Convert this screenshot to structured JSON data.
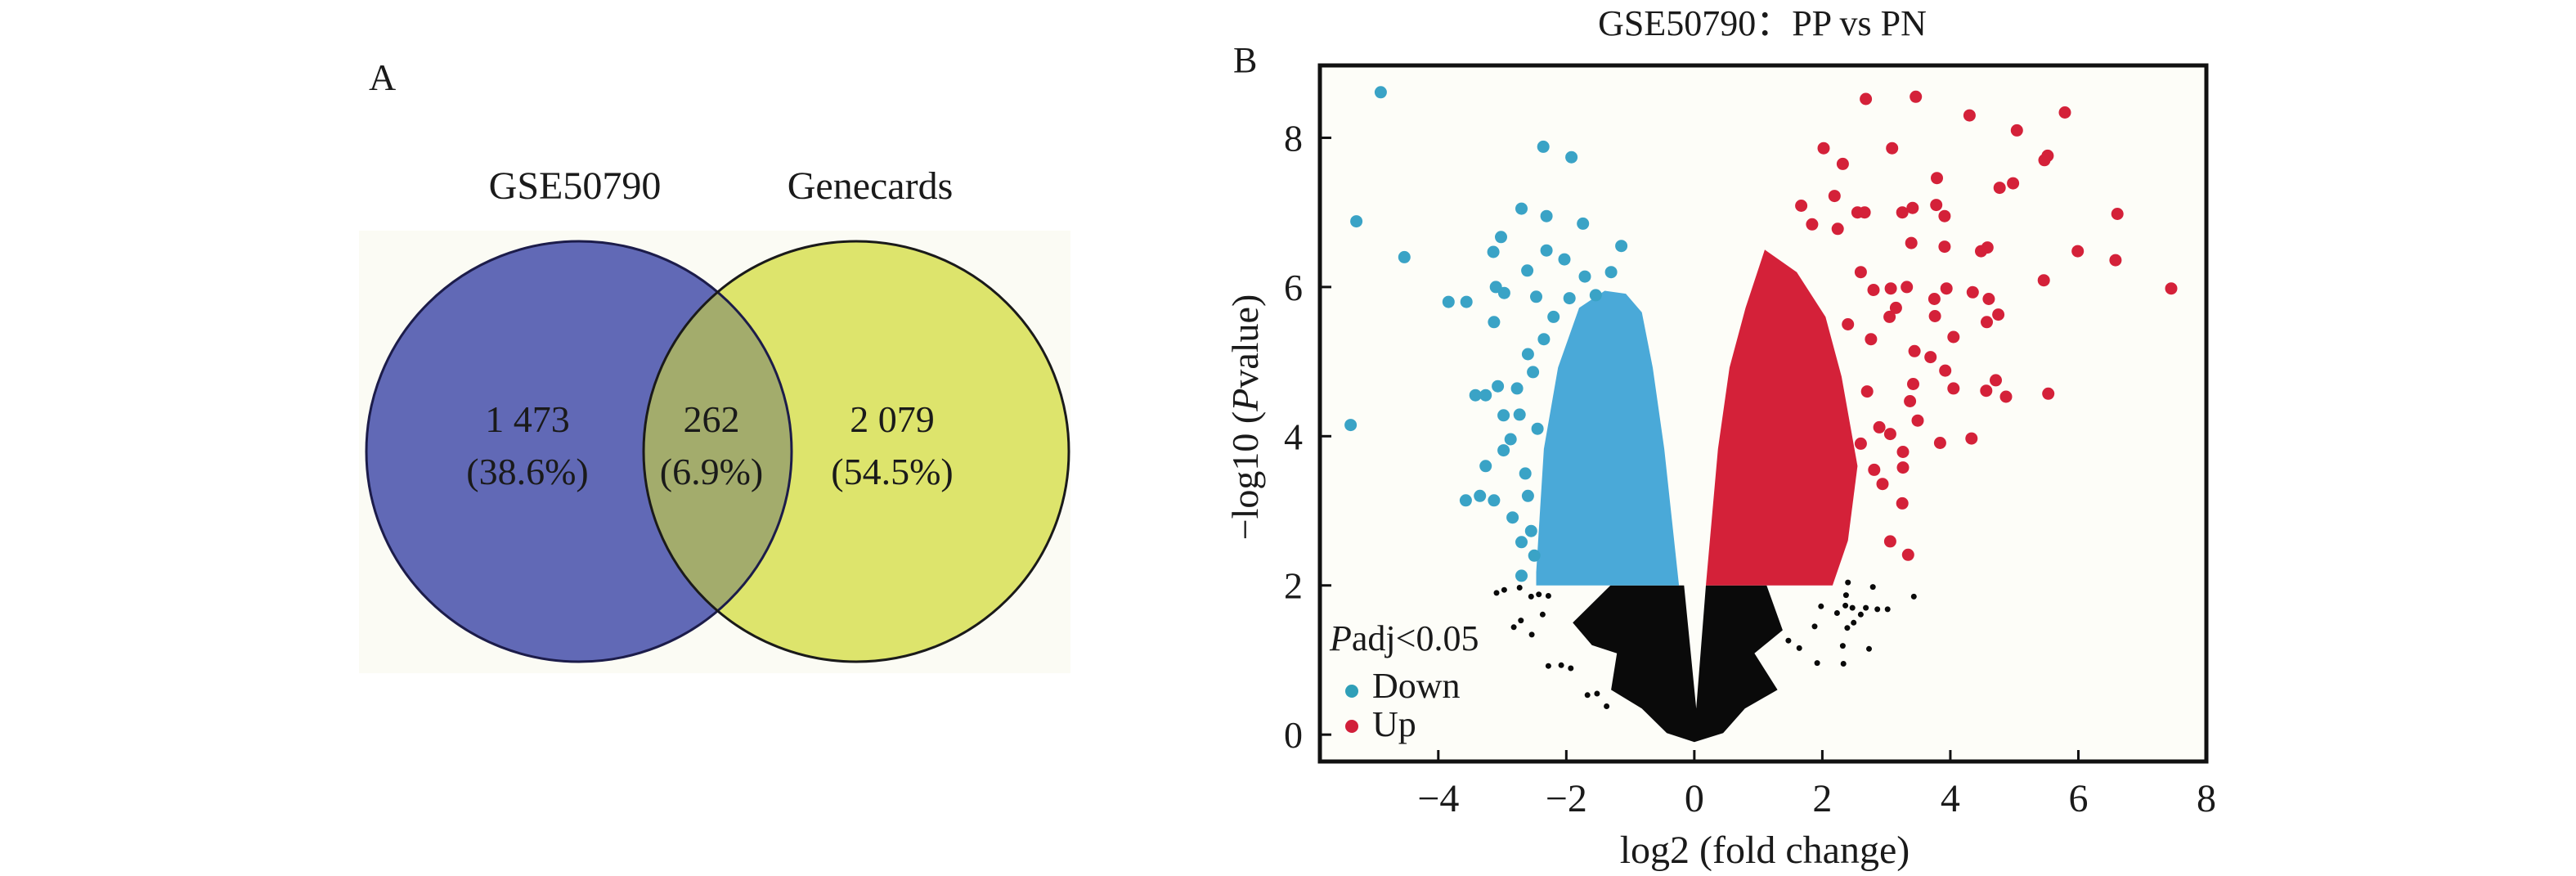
{
  "panels": {
    "a_label": "A",
    "b_label": "B"
  },
  "venn": {
    "sets": [
      {
        "name": "GSE50790",
        "color": "#6169b6"
      },
      {
        "name": "Genecards",
        "color": "#dde46c"
      }
    ],
    "intersection_color": "#a3ac6c",
    "background_color": "#fbfbf4",
    "regions": [
      {
        "id": "only-gse50790",
        "count": "1 473",
        "percent": "(38.6%)"
      },
      {
        "id": "both",
        "count": "262",
        "percent": "(6.9%)"
      },
      {
        "id": "only-genecards",
        "count": "2 079",
        "percent": "(54.5%)"
      }
    ]
  },
  "chart_data": [
    {
      "type": "venn",
      "sets": [
        "GSE50790",
        "Genecards"
      ],
      "values": {
        "GSE50790_only": 1473,
        "intersection": 262,
        "Genecards_only": 2079
      },
      "percentages": {
        "GSE50790_only": 38.6,
        "intersection": 6.9,
        "Genecards_only": 54.5
      }
    },
    {
      "type": "scatter",
      "title": "GSE50790：PP vs PN",
      "xlabel": "log2 (fold change)",
      "ylabel_prefix": "−log10 (",
      "ylabel_italic": "P",
      "ylabel_suffix": "value)",
      "xlim": [
        -5.85,
        8
      ],
      "ylim": [
        -0.36,
        8.97
      ],
      "xticks": [
        -4,
        -2,
        0,
        2,
        4,
        6,
        8
      ],
      "xtick_labels": [
        "−4",
        "−2",
        "0",
        "2",
        "4",
        "6",
        "8"
      ],
      "yticks": [
        0,
        2,
        4,
        6,
        8
      ],
      "ytick_labels": [
        "0",
        "2",
        "4",
        "6",
        "8"
      ],
      "grid": false,
      "legend": {
        "position": "bottom-left",
        "title_italic": "P",
        "title_rest": "adj<0.05",
        "entries": [
          {
            "label": "Down",
            "color": "#2f9fb8"
          },
          {
            "label": "Up",
            "color": "#d11f3a"
          }
        ]
      },
      "colors": {
        "down": "#4aa9d8",
        "down_outlier": "#3aa3c6",
        "up": "#d42139",
        "ns": "#0a0a0a"
      },
      "dense_regions": [
        {
          "series": "ns",
          "polygon": [
            [
              -1.31,
              2
            ],
            [
              -1.9,
              1.5
            ],
            [
              -1.6,
              1.2
            ],
            [
              -1.21,
              1.09
            ],
            [
              -1.3,
              0.6
            ],
            [
              -0.82,
              0.35
            ],
            [
              -0.43,
              0.02
            ],
            [
              0,
              -0.1
            ],
            [
              0.45,
              0.02
            ],
            [
              0.79,
              0.35
            ],
            [
              1.3,
              0.6
            ],
            [
              0.94,
              1.09
            ],
            [
              1.38,
              1.4
            ],
            [
              1.13,
              2
            ],
            [
              0.18,
              2
            ],
            [
              0.03,
              0.35
            ],
            [
              -0.16,
              2
            ]
          ]
        },
        {
          "series": "down",
          "polygon": [
            [
              -2.47,
              2.0
            ],
            [
              -2.47,
              2.18
            ],
            [
              -2.35,
              3.83
            ],
            [
              -2.13,
              4.92
            ],
            [
              -1.8,
              5.72
            ],
            [
              -1.4,
              5.95
            ],
            [
              -1.07,
              5.91
            ],
            [
              -0.82,
              5.66
            ],
            [
              -0.65,
              4.92
            ],
            [
              -0.47,
              3.83
            ],
            [
              -0.24,
              2.0
            ]
          ]
        },
        {
          "series": "up",
          "polygon": [
            [
              0.18,
              2.0
            ],
            [
              0.37,
              3.83
            ],
            [
              0.55,
              4.92
            ],
            [
              0.8,
              5.72
            ],
            [
              1.1,
              6.5
            ],
            [
              1.6,
              6.2
            ],
            [
              2.05,
              5.6
            ],
            [
              2.3,
              4.8
            ],
            [
              2.55,
              3.6
            ],
            [
              2.4,
              2.6
            ],
            [
              2.16,
              2.0
            ]
          ]
        }
      ],
      "series": [
        {
          "name": "Down",
          "points": [
            [
              -4.9,
              8.61
            ],
            [
              -5.28,
              6.88
            ],
            [
              -4.53,
              6.4
            ],
            [
              -5.37,
              4.15
            ],
            [
              -2.36,
              7.88
            ],
            [
              -1.92,
              7.74
            ],
            [
              -2.7,
              7.05
            ],
            [
              -2.31,
              6.95
            ],
            [
              -1.74,
              6.85
            ],
            [
              -1.14,
              6.55
            ],
            [
              -3.02,
              6.67
            ],
            [
              -3.14,
              6.47
            ],
            [
              -2.31,
              6.49
            ],
            [
              -2.03,
              6.37
            ],
            [
              -2.61,
              6.22
            ],
            [
              -1.71,
              6.14
            ],
            [
              -3.1,
              6.0
            ],
            [
              -2.97,
              5.92
            ],
            [
              -3.84,
              5.8
            ],
            [
              -3.56,
              5.8
            ],
            [
              -3.13,
              5.53
            ],
            [
              -2.47,
              5.87
            ],
            [
              -1.54,
              5.89
            ],
            [
              -2.52,
              4.86
            ],
            [
              -3.42,
              4.55
            ],
            [
              -3.26,
              4.55
            ],
            [
              -3.07,
              4.67
            ],
            [
              -2.77,
              4.64
            ],
            [
              -2.98,
              4.28
            ],
            [
              -2.73,
              4.29
            ],
            [
              -2.87,
              3.96
            ],
            [
              -2.98,
              3.81
            ],
            [
              -3.26,
              3.6
            ],
            [
              -3.57,
              3.14
            ],
            [
              -3.35,
              3.2
            ],
            [
              -3.13,
              3.14
            ],
            [
              -2.64,
              3.5
            ],
            [
              -2.84,
              2.91
            ],
            [
              -2.7,
              2.58
            ],
            [
              -2.7,
              2.13
            ],
            [
              -2.55,
              2.73
            ],
            [
              -2.2,
              5.6
            ],
            [
              -2.35,
              5.3
            ],
            [
              -2.6,
              5.1
            ],
            [
              -2.45,
              4.1
            ],
            [
              -2.6,
              3.2
            ],
            [
              -2.5,
              2.4
            ],
            [
              -1.95,
              5.85
            ],
            [
              -1.3,
              6.2
            ]
          ]
        },
        {
          "name": "Up",
          "points": [
            [
              2.68,
              8.52
            ],
            [
              3.46,
              8.55
            ],
            [
              4.3,
              8.3
            ],
            [
              5.04,
              8.1
            ],
            [
              5.79,
              8.34
            ],
            [
              2.02,
              7.86
            ],
            [
              3.09,
              7.86
            ],
            [
              2.32,
              7.65
            ],
            [
              5.52,
              7.76
            ],
            [
              5.47,
              7.7
            ],
            [
              3.79,
              7.46
            ],
            [
              4.77,
              7.33
            ],
            [
              4.98,
              7.39
            ],
            [
              1.67,
              7.09
            ],
            [
              2.19,
              7.22
            ],
            [
              2.55,
              7.0
            ],
            [
              2.66,
              7.0
            ],
            [
              3.25,
              7.0
            ],
            [
              3.41,
              7.06
            ],
            [
              3.78,
              7.1
            ],
            [
              3.91,
              6.95
            ],
            [
              6.61,
              6.98
            ],
            [
              1.84,
              6.84
            ],
            [
              2.24,
              6.78
            ],
            [
              3.39,
              6.59
            ],
            [
              3.91,
              6.54
            ],
            [
              4.48,
              6.48
            ],
            [
              4.58,
              6.53
            ],
            [
              5.99,
              6.48
            ],
            [
              6.58,
              6.36
            ],
            [
              5.46,
              6.09
            ],
            [
              7.45,
              5.98
            ],
            [
              3.07,
              5.98
            ],
            [
              3.32,
              6.0
            ],
            [
              2.8,
              5.96
            ],
            [
              3.94,
              5.98
            ],
            [
              3.75,
              5.84
            ],
            [
              4.35,
              5.93
            ],
            [
              4.6,
              5.84
            ],
            [
              3.15,
              5.72
            ],
            [
              3.05,
              5.6
            ],
            [
              3.76,
              5.61
            ],
            [
              4.57,
              5.53
            ],
            [
              4.75,
              5.63
            ],
            [
              4.05,
              5.33
            ],
            [
              2.76,
              5.3
            ],
            [
              3.44,
              5.14
            ],
            [
              3.69,
              5.06
            ],
            [
              3.92,
              4.88
            ],
            [
              4.05,
              4.64
            ],
            [
              4.56,
              4.61
            ],
            [
              4.71,
              4.75
            ],
            [
              4.87,
              4.53
            ],
            [
              5.53,
              4.57
            ],
            [
              3.42,
              4.7
            ],
            [
              3.37,
              4.47
            ],
            [
              3.49,
              4.21
            ],
            [
              3.84,
              3.91
            ],
            [
              4.33,
              3.97
            ],
            [
              2.89,
              4.12
            ],
            [
              3.06,
              4.03
            ],
            [
              3.26,
              3.79
            ],
            [
              3.26,
              3.58
            ],
            [
              2.81,
              3.55
            ],
            [
              2.94,
              3.36
            ],
            [
              3.25,
              3.1
            ],
            [
              3.06,
              2.59
            ],
            [
              3.34,
              2.41
            ],
            [
              2.6,
              6.2
            ],
            [
              2.4,
              5.5
            ],
            [
              2.7,
              4.6
            ],
            [
              2.6,
              3.9
            ]
          ]
        },
        {
          "name": "NS",
          "points": [
            [
              3.43,
              1.85
            ],
            [
              2.4,
              2.04
            ],
            [
              2.37,
              1.87
            ],
            [
              2.47,
              1.7
            ],
            [
              2.68,
              1.7
            ],
            [
              2.23,
              1.63
            ],
            [
              1.98,
              1.72
            ],
            [
              1.88,
              1.45
            ],
            [
              2.49,
              1.5
            ],
            [
              2.39,
              1.43
            ],
            [
              2.32,
              1.19
            ],
            [
              1.92,
              0.96
            ],
            [
              1.64,
              1.16
            ],
            [
              1.47,
              1.26
            ],
            [
              -2.71,
              1.53
            ],
            [
              -2.82,
              1.44
            ],
            [
              -2.54,
              1.34
            ],
            [
              -2.37,
              1.61
            ],
            [
              -3.09,
              1.9
            ],
            [
              -2.97,
              1.94
            ],
            [
              -2.73,
              1.97
            ],
            [
              -2.55,
              1.85
            ],
            [
              -2.43,
              1.88
            ],
            [
              -2.28,
              1.86
            ],
            [
              -2.28,
              0.92
            ],
            [
              -2.08,
              0.93
            ],
            [
              -1.93,
              0.89
            ],
            [
              -1.67,
              0.53
            ],
            [
              -1.52,
              0.55
            ],
            [
              -1.37,
              0.38
            ],
            [
              2.79,
              1.98
            ],
            [
              3.02,
              1.68
            ],
            [
              2.86,
              1.68
            ],
            [
              2.6,
              1.61
            ],
            [
              2.33,
              0.95
            ],
            [
              2.73,
              1.15
            ],
            [
              2.36,
              1.73
            ]
          ]
        }
      ]
    }
  ]
}
